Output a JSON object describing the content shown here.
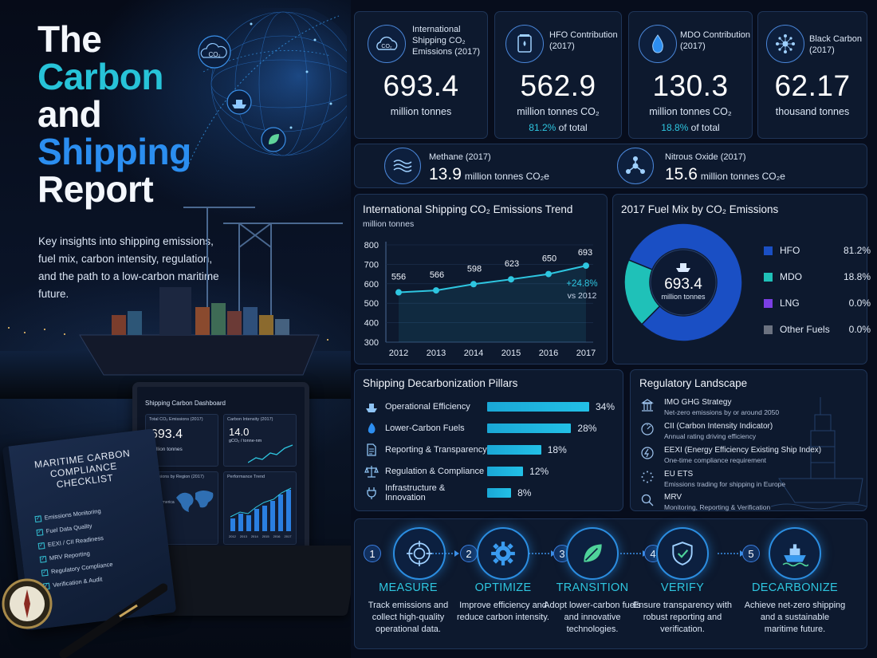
{
  "hero": {
    "title_lines": [
      "The",
      "Carbon",
      "and",
      "Shipping",
      "Report"
    ],
    "subtitle": "Key insights into shipping emissions, fuel mix, carbon intensity, regulation, and the path to a low-carbon maritime future."
  },
  "dashboard": {
    "title": "Shipping Carbon Dashboard",
    "total_label": "Total CO₂ Emissions (2017)",
    "total_value": "693.4",
    "total_unit": "million tonnes",
    "intensity_label": "Carbon Intensity (2017)",
    "intensity_value": "14.0",
    "intensity_unit": "gCO₂ / tonne-nm",
    "region_label": "Emissions by Region (2017)",
    "region_items": [
      "Asia",
      "Europe",
      "North America",
      "Global",
      "Other"
    ],
    "trend_label": "Performance Trend",
    "trend_years": [
      "2012",
      "2013",
      "2014",
      "2015",
      "2016",
      "2017"
    ]
  },
  "checklist": {
    "title": "MARITIME CARBON COMPLIANCE CHECKLIST",
    "items": [
      "Emissions Monitoring",
      "Fuel Data Quality",
      "EEXI / CII Readiness",
      "MRV Reporting",
      "Regulatory Compliance",
      "Verification & Audit"
    ]
  },
  "stats": [
    {
      "label": "International Shipping CO₂ Emissions (2017)",
      "value": "693.4",
      "unit": "million tonnes",
      "icon": "co2-cloud-icon"
    },
    {
      "label": "HFO Contribution (2017)",
      "value": "562.9",
      "unit": "million tonnes CO₂",
      "share": "81.2%",
      "share_suffix": "of total",
      "icon": "fuel-drum-icon"
    },
    {
      "label": "MDO Contribution (2017)",
      "value": "130.3",
      "unit": "million tonnes CO₂",
      "share": "18.8%",
      "share_suffix": "of total",
      "icon": "drop-icon"
    },
    {
      "label": "Black Carbon (2017)",
      "value": "62.17",
      "unit": "thousand tonnes",
      "icon": "particles-icon"
    }
  ],
  "gases": [
    {
      "label": "Methane (2017)",
      "value": "13.9",
      "unit": "million tonnes CO₂e",
      "icon": "waves-icon"
    },
    {
      "label": "Nitrous Oxide (2017)",
      "value": "15.6",
      "unit": "million tonnes CO₂e",
      "icon": "molecule-icon"
    }
  ],
  "chart_data": [
    {
      "type": "line",
      "title": "International Shipping CO₂ Emissions Trend",
      "subtitle": "million tonnes",
      "x": [
        "2012",
        "2013",
        "2014",
        "2015",
        "2016",
        "2017"
      ],
      "series": [
        {
          "values": [
            556,
            566,
            598,
            623,
            650,
            693
          ]
        }
      ],
      "ylim": [
        300,
        800
      ],
      "yticks": [
        300,
        400,
        500,
        600,
        700,
        800
      ],
      "annotation": {
        "value": "+24.8%",
        "text": "vs 2012"
      },
      "color": "#2ec6e0"
    },
    {
      "type": "pie",
      "title": "2017 Fuel Mix by CO₂ Emissions",
      "center_value": "693.4",
      "center_unit": "million tonnes",
      "categories": [
        "HFO",
        "MDO",
        "LNG",
        "Other Fuels"
      ],
      "values": [
        81.2,
        18.8,
        0.0,
        0.0
      ],
      "labels": [
        "81.2%",
        "18.8%",
        "0.0%",
        "0.0%"
      ],
      "colors": [
        "#1a4fc4",
        "#1fc1b8",
        "#7b3fe4",
        "#6b7280"
      ],
      "legend": "right"
    },
    {
      "type": "bar",
      "title": "Shipping Decarbonization Pillars",
      "categories": [
        "Operational Efficiency",
        "Lower-Carbon Fuels",
        "Reporting & Transparency",
        "Regulation & Compliance",
        "Infrastructure & Innovation"
      ],
      "values": [
        34,
        28,
        18,
        12,
        8
      ],
      "labels": [
        "34%",
        "28%",
        "18%",
        "12%",
        "8%"
      ],
      "icons": [
        "ship-icon",
        "flame-icon",
        "document-icon",
        "scales-icon",
        "plug-icon"
      ],
      "xlim": [
        0,
        34
      ]
    }
  ],
  "regulatory": {
    "title": "Regulatory Landscape",
    "items": [
      {
        "name": "IMO GHG Strategy",
        "desc": "Net-zero emissions by or around 2050",
        "icon": "building-icon"
      },
      {
        "name": "CII (Carbon Intensity Indicator)",
        "desc": "Annual rating driving efficiency",
        "icon": "gauge-icon"
      },
      {
        "name": "EEXI (Energy Efficiency Existing Ship Index)",
        "desc": "One-time compliance requirement",
        "icon": "efficiency-icon"
      },
      {
        "name": "EU ETS",
        "desc": "Emissions trading for shipping in Europe",
        "icon": "eu-stars-icon"
      },
      {
        "name": "MRV",
        "desc": "Monitoring, Reporting & Verification",
        "icon": "magnifier-icon"
      }
    ]
  },
  "steps": [
    {
      "num": "1",
      "title": "MEASURE",
      "desc": "Track emissions and collect high-quality operational data.",
      "icon": "target-icon"
    },
    {
      "num": "2",
      "title": "OPTIMIZE",
      "desc": "Improve efficiency and reduce carbon intensity.",
      "icon": "gear-icon"
    },
    {
      "num": "3",
      "title": "TRANSITION",
      "desc": "Adopt lower-carbon fuels and innovative technologies.",
      "icon": "leaf-icon"
    },
    {
      "num": "4",
      "title": "VERIFY",
      "desc": "Ensure transparency with robust reporting and verification.",
      "icon": "shield-check-icon"
    },
    {
      "num": "5",
      "title": "DECARBONIZE",
      "desc": "Achieve net-zero shipping and a sustainable maritime future.",
      "icon": "ship-icon"
    }
  ],
  "colors": {
    "accent": "#2ec6e0",
    "blue": "#2b8ef0",
    "panel": "#0e1a30",
    "border": "#1f3558"
  }
}
